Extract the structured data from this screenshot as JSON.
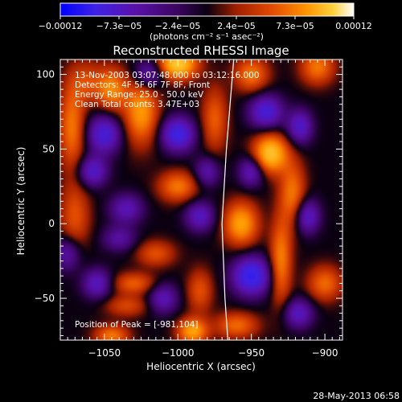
{
  "chart_data": {
    "type": "heatmap",
    "title": "Reconstructed RHESSI Image",
    "xlabel": "Heliocentric X (arcsec)",
    "ylabel": "Heliocentric Y (arcsec)",
    "xlim": [
      -1080,
      -888
    ],
    "ylim": [
      -78,
      110
    ],
    "x_ticks": [
      {
        "v": -1050,
        "label": "−1050"
      },
      {
        "v": -1000,
        "label": "−1000"
      },
      {
        "v": -950,
        "label": "−950"
      },
      {
        "v": -900,
        "label": "−900"
      }
    ],
    "y_ticks": [
      {
        "v": 100,
        "label": "100"
      },
      {
        "v": 50,
        "label": "50"
      },
      {
        "v": 0,
        "label": "0"
      },
      {
        "v": -50,
        "label": "−50"
      }
    ],
    "colorbar": {
      "min": -0.00012,
      "max": 0.00012,
      "tick_labels": [
        "−0.00012",
        "−7.3e−05",
        "−2.4e−05",
        "2.4e−05",
        "7.3e−05",
        "0.00012"
      ],
      "unit": "(photons cm⁻² s⁻¹ asec⁻²)"
    },
    "annotations": [
      "13-Nov-2003 03:07:48.000 to 03:12:16.000",
      "Detectors: 4F 5F 6F 7F 8F, Front",
      "Energy Range: 25.0 - 50.0 keV",
      "Clean    Total counts: 3.47E+03"
    ],
    "peak_label": "Position of Peak = [-981,104]",
    "peak": [
      -981,
      104
    ],
    "limb_curve": [
      [
        -962,
        110
      ],
      [
        -967,
        50
      ],
      [
        -970,
        0
      ],
      [
        -968,
        -50
      ],
      [
        -966,
        -78
      ]
    ],
    "sources": [
      {
        "x": -1000,
        "y": 107,
        "amp": 1.0,
        "sx": 9,
        "sy": 7
      },
      {
        "x": -1025,
        "y": 75,
        "amp": 0.7,
        "sx": 8,
        "sy": 15
      },
      {
        "x": -1045,
        "y": 90,
        "amp": 0.6,
        "sx": 7,
        "sy": 10
      },
      {
        "x": -1072,
        "y": 65,
        "amp": 0.55,
        "sx": 6,
        "sy": 20
      },
      {
        "x": -1070,
        "y": 5,
        "amp": 0.4,
        "sx": 7,
        "sy": 15
      },
      {
        "x": -1062,
        "y": 95,
        "amp": 0.35,
        "sx": 8,
        "sy": 10
      },
      {
        "x": -975,
        "y": 70,
        "amp": 0.45,
        "sx": 6,
        "sy": 15
      },
      {
        "x": -1000,
        "y": 25,
        "amp": 0.55,
        "sx": 9,
        "sy": 7
      },
      {
        "x": -1015,
        "y": -20,
        "amp": 0.4,
        "sx": 9,
        "sy": 6
      },
      {
        "x": -1030,
        "y": -40,
        "amp": 0.45,
        "sx": 10,
        "sy": 5
      },
      {
        "x": -1035,
        "y": -55,
        "amp": 0.35,
        "sx": 10,
        "sy": 5
      },
      {
        "x": -990,
        "y": -72,
        "amp": 0.75,
        "sx": 7,
        "sy": 6
      },
      {
        "x": -1045,
        "y": -75,
        "amp": 0.55,
        "sx": 8,
        "sy": 5
      },
      {
        "x": -985,
        "y": -45,
        "amp": 0.4,
        "sx": 6,
        "sy": 10
      },
      {
        "x": -937,
        "y": 47,
        "amp": 0.95,
        "sx": 8,
        "sy": 9
      },
      {
        "x": -950,
        "y": 100,
        "amp": 0.55,
        "sx": 8,
        "sy": 8
      },
      {
        "x": -957,
        "y": 0,
        "amp": 0.75,
        "sx": 8,
        "sy": 10
      },
      {
        "x": -930,
        "y": -25,
        "amp": 0.6,
        "sx": 5,
        "sy": 20
      },
      {
        "x": -922,
        "y": 20,
        "amp": 0.55,
        "sx": 6,
        "sy": 15
      },
      {
        "x": -905,
        "y": 105,
        "amp": 0.55,
        "sx": 8,
        "sy": 8
      },
      {
        "x": -960,
        "y": -68,
        "amp": 0.5,
        "sx": 10,
        "sy": 6
      },
      {
        "x": -900,
        "y": -40,
        "amp": 0.5,
        "sx": 8,
        "sy": 8
      },
      {
        "x": -1000,
        "y": 60,
        "amp": -0.8,
        "sx": 8,
        "sy": 8
      },
      {
        "x": -1050,
        "y": 60,
        "amp": -0.7,
        "sx": 8,
        "sy": 9
      },
      {
        "x": -1058,
        "y": 35,
        "amp": -0.6,
        "sx": 7,
        "sy": 7
      },
      {
        "x": -1035,
        "y": 10,
        "amp": -0.5,
        "sx": 8,
        "sy": 7
      },
      {
        "x": -1020,
        "y": 100,
        "amp": -0.55,
        "sx": 7,
        "sy": 7
      },
      {
        "x": -1055,
        "y": -40,
        "amp": -0.55,
        "sx": 7,
        "sy": 7
      },
      {
        "x": -1010,
        "y": -50,
        "amp": -0.5,
        "sx": 7,
        "sy": 7
      },
      {
        "x": -985,
        "y": 5,
        "amp": -0.55,
        "sx": 7,
        "sy": 7
      },
      {
        "x": -980,
        "y": 35,
        "amp": -0.45,
        "sx": 6,
        "sy": 7
      },
      {
        "x": -950,
        "y": 35,
        "amp": -0.55,
        "sx": 6,
        "sy": 7
      },
      {
        "x": -940,
        "y": 75,
        "amp": -0.7,
        "sx": 8,
        "sy": 8
      },
      {
        "x": -917,
        "y": 65,
        "amp": -0.6,
        "sx": 6,
        "sy": 8
      },
      {
        "x": -912,
        "y": 5,
        "amp": -0.6,
        "sx": 6,
        "sy": 8
      },
      {
        "x": -950,
        "y": -35,
        "amp": -0.9,
        "sx": 9,
        "sy": 9
      },
      {
        "x": -918,
        "y": -60,
        "amp": -0.55,
        "sx": 7,
        "sy": 7
      },
      {
        "x": -1075,
        "y": -20,
        "amp": -0.45,
        "sx": 6,
        "sy": 8
      },
      {
        "x": -1040,
        "y": -10,
        "amp": -0.4,
        "sx": 8,
        "sy": 6
      }
    ]
  },
  "footer": {
    "date": "28-May-2013 06:58"
  }
}
